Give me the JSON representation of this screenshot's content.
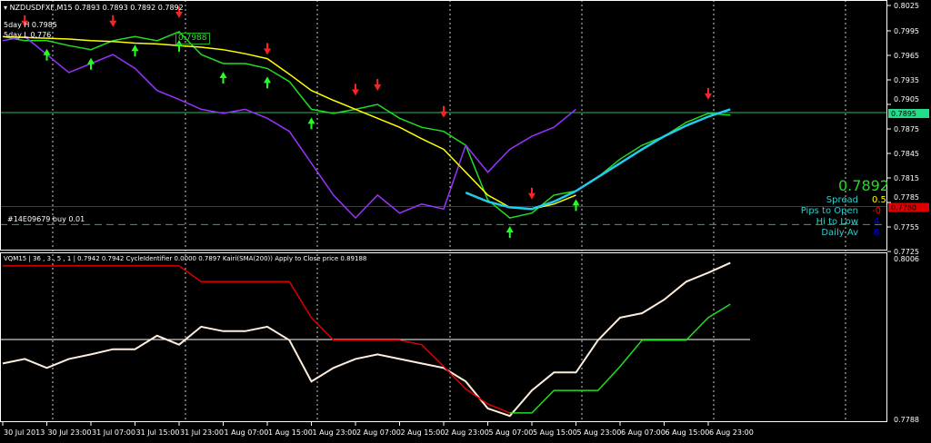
{
  "window": {
    "title": "NZDUSDFXF,M15",
    "ohlc": "0.7893 0.7893 0.7892 0.7892",
    "label_5day_high": "5day H 0.7985",
    "label_5day_low": "5day L 0.776",
    "price_box": "0.7988",
    "order_label": "#14E09679 buy 0.01"
  },
  "info_panel": {
    "price": "0.7892",
    "spread_label": "Spread",
    "spread_value": "0.5",
    "pips_label": "Pips to Open",
    "pips_value": "-0",
    "hilo_label": "Hi to Low",
    "hilo_value": "4",
    "daily_label": "Daily Av",
    "daily_value": "8",
    "colors": {
      "price": "#22dd22",
      "labels": "#33cccc",
      "spread": "#ffff00",
      "pips": "#ff0000",
      "hilo": "#0000ff",
      "daily": "#0000ff"
    }
  },
  "subwindow": {
    "header": "VQM15 | 36 , 3 , 5 , 1 |  0.7942 0.7942  CycleIdentifier 0.0000 0.7897  Kairi(SMA(200)) Apply to Close price 0.89188"
  },
  "chart_data": [
    {
      "type": "line",
      "panel": "main",
      "x": [
        "30 Jul 15:00",
        "30 Jul 19:00",
        "30 Jul 23:00",
        "31 Jul 03:00",
        "31 Jul 07:00",
        "31 Jul 11:00",
        "31 Jul 15:00",
        "31 Jul 19:00",
        "31 Jul 23:00",
        "1 Aug 03:00",
        "1 Aug 07:00",
        "1 Aug 11:00",
        "1 Aug 15:00",
        "1 Aug 19:00",
        "1 Aug 23:00",
        "2 Aug 03:00",
        "2 Aug 07:00",
        "2 Aug 11:00",
        "2 Aug 15:00",
        "2 Aug 19:00",
        "2 Aug 23:00",
        "5 Aug 03:00",
        "5 Aug 07:00",
        "5 Aug 11:00",
        "5 Aug 15:00",
        "5 Aug 19:00",
        "5 Aug 23:00",
        "6 Aug 03:00",
        "6 Aug 07:00",
        "6 Aug 11:00",
        "6 Aug 15:00",
        "6 Aug 19:00",
        "6 Aug 23:00",
        "7 Aug 03:00"
      ],
      "series": [
        {
          "color": "#22dd22",
          "values": [
            0.7988,
            0.7983,
            0.7983,
            0.7977,
            0.7972,
            0.7983,
            0.7988,
            0.7983,
            0.7994,
            0.7966,
            0.7955,
            0.7955,
            0.7949,
            0.7933,
            0.7899,
            0.7894,
            0.7899,
            0.7905,
            0.7888,
            0.7877,
            0.7872,
            0.7855,
            0.7788,
            0.7766,
            0.7772,
            0.7794,
            0.7799,
            0.7816,
            0.7838,
            0.7855,
            0.7866,
            0.7883,
            0.7894,
            0.7892
          ]
        },
        {
          "color": "#9933ff",
          "values": [
            0.7983,
            0.7988,
            0.7966,
            0.7944,
            0.7955,
            0.7966,
            0.7949,
            0.7922,
            0.7911,
            0.7899,
            0.7894,
            0.7899,
            0.7888,
            0.7872,
            0.7833,
            0.7794,
            0.7766,
            0.7794,
            0.7772,
            0.7783,
            0.7777,
            0.7855,
            0.7822,
            0.785,
            0.7866,
            0.7877,
            0.7899,
            null,
            null,
            null,
            null,
            null,
            null,
            null
          ]
        },
        {
          "color": "#ffff00",
          "values": [
            0.7988,
            0.7987,
            0.7986,
            0.7985,
            0.7983,
            0.7982,
            0.798,
            0.7979,
            0.7977,
            0.7975,
            0.7972,
            0.7967,
            0.7961,
            0.7942,
            0.7922,
            0.791,
            0.7899,
            0.7888,
            0.7877,
            0.7863,
            0.785,
            0.7822,
            0.7794,
            0.7779,
            0.7777,
            0.7783,
            0.7794,
            null,
            null,
            null,
            null,
            null,
            null,
            null
          ]
        },
        {
          "color": "#22ccee",
          "values": [
            null,
            null,
            null,
            null,
            null,
            null,
            null,
            null,
            null,
            null,
            null,
            null,
            null,
            null,
            null,
            null,
            null,
            null,
            null,
            null,
            null,
            0.7797,
            0.7786,
            0.7779,
            0.7777,
            0.7786,
            0.7799,
            0.7816,
            0.7833,
            0.785,
            0.7866,
            0.7879,
            0.789,
            0.7899
          ]
        }
      ],
      "hlines": [
        {
          "value": 0.7895,
          "color": "#22bb55",
          "style": "solid"
        },
        {
          "value": 0.778,
          "color": "#cc0000",
          "style": "solid"
        },
        {
          "value": 0.7758,
          "color": "#22bb22",
          "style": "dashed"
        }
      ],
      "signals_down": [
        1,
        5,
        8,
        12,
        16,
        17,
        20,
        24,
        32
      ],
      "signals_up": [
        2,
        4,
        6,
        8,
        10,
        12,
        14,
        23,
        26
      ],
      "y_ticks": [
        "0.8025",
        "0.7995",
        "0.7965",
        "0.7935",
        "0.7905",
        "0.7875",
        "0.7845",
        "0.7815",
        "0.7785",
        "0.7755",
        "0.7725"
      ],
      "current_price_tag": {
        "text": "0.7895",
        "color": "#22dd88"
      },
      "red_line_tag": {
        "text": "0.7780",
        "color": "#dd0000"
      },
      "x_ticks": [
        "30 Jul 2013",
        "30 Jul 23:00",
        "31 Jul 07:00",
        "31 Jul 15:00",
        "31 Jul 23:00",
        "1 Aug 07:00",
        "1 Aug 15:00",
        "1 Aug 23:00",
        "2 Aug 07:00",
        "2 Aug 15:00",
        "2 Aug 23:00",
        "5 Aug 07:00",
        "5 Aug 15:00",
        "5 Aug 23:00",
        "6 Aug 07:00",
        "6 Aug 15:00",
        "6 Aug 23:00"
      ]
    },
    {
      "type": "line",
      "panel": "sub",
      "series": [
        {
          "color": "#ffeedd",
          "values": [
            0.7864,
            0.787,
            0.7858,
            0.787,
            0.7876,
            0.7883,
            0.7883,
            0.7901,
            0.7889,
            0.7913,
            0.7907,
            0.7907,
            0.7913,
            0.7895,
            0.784,
            0.7858,
            0.787,
            0.7876,
            0.787,
            0.7864,
            0.7858,
            0.784,
            0.7804,
            0.7794,
            0.7828,
            0.7852,
            0.7852,
            0.7895,
            0.7925,
            0.7931,
            0.7949,
            0.7973,
            0.7985,
            0.7998
          ]
        },
        {
          "color": "#dd0000",
          "values": [
            0.7994,
            0.7994,
            0.7994,
            0.7994,
            0.7994,
            0.7994,
            0.7994,
            0.7994,
            0.7994,
            0.7973,
            0.7973,
            0.7973,
            0.7973,
            0.7973,
            0.7925,
            0.7895,
            0.7895,
            0.7895,
            0.7895,
            0.7889,
            0.786,
            0.783,
            0.781,
            0.7798,
            null,
            null,
            null,
            null,
            null,
            null,
            null,
            null,
            null,
            null
          ]
        },
        {
          "color": "#22dd22",
          "values": [
            null,
            null,
            null,
            null,
            null,
            null,
            null,
            null,
            null,
            null,
            null,
            null,
            null,
            null,
            null,
            null,
            null,
            null,
            null,
            null,
            null,
            null,
            null,
            0.7798,
            0.7798,
            0.7828,
            0.7828,
            0.7828,
            0.786,
            0.7895,
            0.7895,
            0.7895,
            0.7925,
            0.7943
          ]
        }
      ],
      "y_ticks": [
        "0.8006",
        "0.7788"
      ]
    }
  ]
}
